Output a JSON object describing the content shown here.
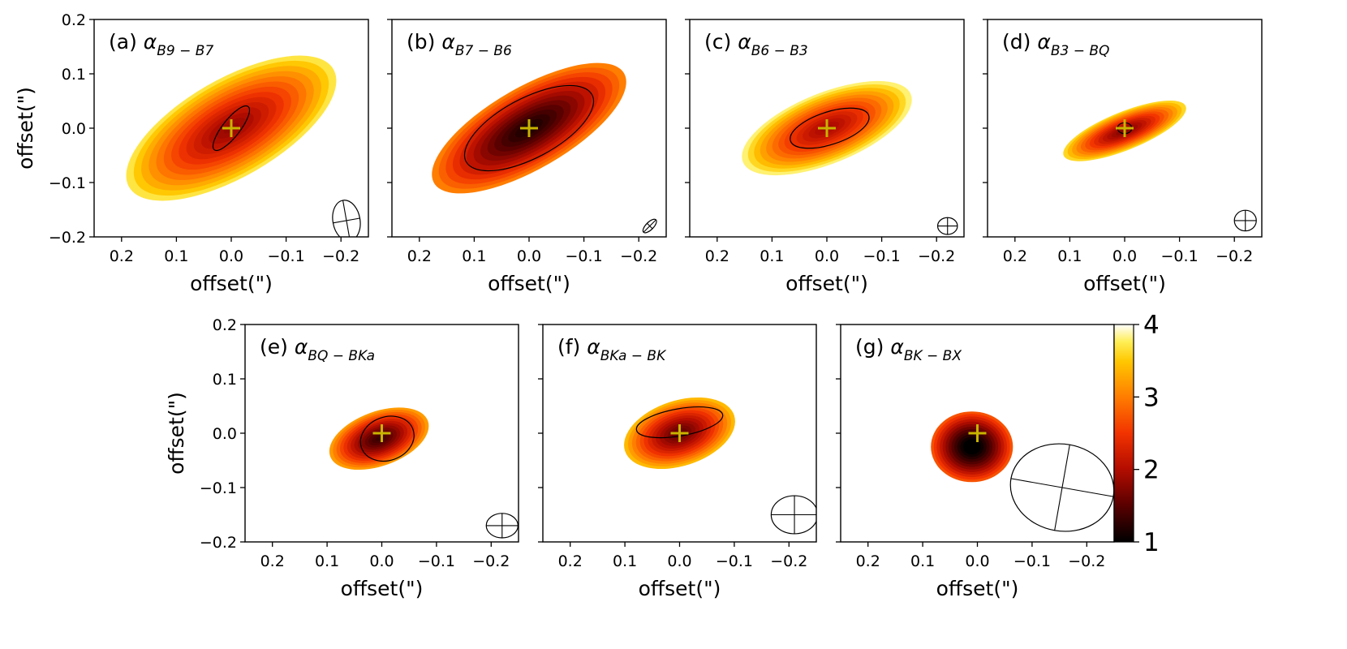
{
  "chart_data": [
    {
      "type": "heatmap",
      "panel": "a",
      "title_prefix": "(a) ",
      "alpha_symbol": "α",
      "subscript": "B9 − B7",
      "xlabel": "offset(\")",
      "ylabel": "offset(\")",
      "xlim": [
        0.25,
        -0.25
      ],
      "ylim": [
        -0.2,
        0.2
      ],
      "xticks": [
        "0.2",
        "0.1",
        "0.0",
        "−0.1",
        "−0.2"
      ],
      "yticks": [
        "0.2",
        "0.1",
        "0.0",
        "−0.1",
        "−0.2"
      ],
      "center_marker": [
        0,
        0
      ],
      "emission": {
        "center": [
          0.0,
          0.0
        ],
        "semi_major": 0.215,
        "semi_minor": 0.09,
        "pa_deg": 30,
        "mean_alpha": 2.5
      },
      "contour": {
        "center": [
          0.0,
          0.0
        ],
        "semi_major": 0.05,
        "semi_minor": 0.016,
        "pa_deg": 52
      },
      "beam": {
        "center": [
          -0.21,
          -0.17
        ],
        "major": 0.075,
        "minor": 0.05,
        "pa_deg": 100
      }
    },
    {
      "type": "heatmap",
      "panel": "b",
      "title_prefix": "(b) ",
      "alpha_symbol": "α",
      "subscript": "B7 − B6",
      "xlabel": "offset(\")",
      "ylabel": "",
      "xlim": [
        0.25,
        -0.25
      ],
      "ylim": [
        -0.2,
        0.2
      ],
      "xticks": [
        "0.2",
        "0.1",
        "0.0",
        "−0.1",
        "−0.2"
      ],
      "yticks": [],
      "center_marker": [
        0,
        0
      ],
      "emission": {
        "center": [
          0.0,
          0.0
        ],
        "semi_major": 0.2,
        "semi_minor": 0.075,
        "pa_deg": 30,
        "mean_alpha": 1.8
      },
      "contour": {
        "center": [
          0.0,
          0.0
        ],
        "semi_major": 0.13,
        "semi_minor": 0.055,
        "pa_deg": 28
      },
      "beam": {
        "center": [
          -0.22,
          -0.18
        ],
        "major": 0.032,
        "minor": 0.014,
        "pa_deg": 45
      }
    },
    {
      "type": "heatmap",
      "panel": "c",
      "title_prefix": "(c) ",
      "alpha_symbol": "α",
      "subscript": "B6 − B3",
      "xlabel": "offset(\")",
      "ylabel": "",
      "xlim": [
        0.25,
        -0.25
      ],
      "ylim": [
        -0.2,
        0.2
      ],
      "xticks": [
        "0.2",
        "0.1",
        "0.0",
        "−0.1",
        "−0.2"
      ],
      "yticks": [],
      "center_marker": [
        0,
        0
      ],
      "emission": {
        "center": [
          0.0,
          0.0
        ],
        "semi_major": 0.165,
        "semi_minor": 0.065,
        "pa_deg": 22,
        "mean_alpha": 2.6
      },
      "contour": {
        "center": [
          -0.005,
          0.0
        ],
        "semi_major": 0.075,
        "semi_minor": 0.03,
        "pa_deg": 18
      },
      "beam": {
        "center": [
          -0.22,
          -0.18
        ],
        "major": 0.036,
        "minor": 0.031,
        "pa_deg": 0
      }
    },
    {
      "type": "heatmap",
      "panel": "d",
      "title_prefix": "(d) ",
      "alpha_symbol": "α",
      "subscript": "B3 − BQ",
      "xlabel": "offset(\")",
      "ylabel": "",
      "xlim": [
        0.25,
        -0.25
      ],
      "ylim": [
        -0.2,
        0.2
      ],
      "xticks": [
        "0.2",
        "0.1",
        "0.0",
        "−0.1",
        "−0.2"
      ],
      "yticks": [],
      "center_marker": [
        0,
        0
      ],
      "emission": {
        "center": [
          0.0,
          -0.005
        ],
        "semi_major": 0.12,
        "semi_minor": 0.035,
        "pa_deg": 22,
        "mean_alpha": 2.4
      },
      "contour": {
        "center": [
          0.0,
          0.0
        ],
        "semi_major": 0.013,
        "semi_minor": 0.01,
        "pa_deg": 0
      },
      "beam": {
        "center": [
          -0.22,
          -0.17
        ],
        "major": 0.04,
        "minor": 0.038,
        "pa_deg": 0
      }
    },
    {
      "type": "heatmap",
      "panel": "e",
      "title_prefix": "(e) ",
      "alpha_symbol": "α",
      "subscript": "BQ − BKa",
      "xlabel": "offset(\")",
      "ylabel": "offset(\")",
      "xlim": [
        0.25,
        -0.25
      ],
      "ylim": [
        -0.2,
        0.2
      ],
      "xticks": [
        "0.2",
        "0.1",
        "0.0",
        "−0.1",
        "−0.2"
      ],
      "yticks": [
        "0.2",
        "0.1",
        "0.0",
        "−0.1",
        "−0.2"
      ],
      "center_marker": [
        0,
        0
      ],
      "emission": {
        "center": [
          0.005,
          -0.01
        ],
        "semi_major": 0.095,
        "semi_minor": 0.05,
        "pa_deg": 20,
        "mean_alpha": 2.0
      },
      "contour": {
        "center": [
          -0.01,
          -0.01
        ],
        "semi_major": 0.05,
        "semi_minor": 0.04,
        "pa_deg": 20
      },
      "beam": {
        "center": [
          -0.22,
          -0.17
        ],
        "major": 0.058,
        "minor": 0.045,
        "pa_deg": 0
      }
    },
    {
      "type": "heatmap",
      "panel": "f",
      "title_prefix": "(f) ",
      "alpha_symbol": "α",
      "subscript": "BKa − BK",
      "xlabel": "offset(\")",
      "ylabel": "",
      "xlim": [
        0.25,
        -0.25
      ],
      "ylim": [
        -0.2,
        0.2
      ],
      "xticks": [
        "0.2",
        "0.1",
        "0.0",
        "−0.1",
        "−0.2"
      ],
      "yticks": [],
      "center_marker": [
        0,
        0
      ],
      "emission": {
        "center": [
          0.0,
          0.0
        ],
        "semi_major": 0.105,
        "semi_minor": 0.06,
        "pa_deg": 18,
        "mean_alpha": 2.2
      },
      "contour": {
        "center": [
          0.0,
          0.02
        ],
        "semi_major": 0.08,
        "semi_minor": 0.025,
        "pa_deg": 10
      },
      "beam": {
        "center": [
          -0.21,
          -0.15
        ],
        "major": 0.085,
        "minor": 0.07,
        "pa_deg": 0
      }
    },
    {
      "type": "heatmap",
      "panel": "g",
      "title_prefix": "(g) ",
      "alpha_symbol": "α",
      "subscript": "BK − BX",
      "xlabel": "offset(\")",
      "ylabel": "",
      "xlim": [
        0.25,
        -0.25
      ],
      "ylim": [
        -0.2,
        0.2
      ],
      "xticks": [
        "0.2",
        "0.1",
        "0.0",
        "−0.1",
        "−0.2"
      ],
      "yticks": [],
      "center_marker": [
        0,
        0
      ],
      "emission": {
        "center": [
          0.01,
          -0.025
        ],
        "semi_major": 0.075,
        "semi_minor": 0.065,
        "pa_deg": 0,
        "mean_alpha": 1.5
      },
      "contour": null,
      "beam": {
        "center": [
          -0.155,
          -0.1
        ],
        "major": 0.19,
        "minor": 0.16,
        "pa_deg": -10
      }
    }
  ],
  "colorbar": {
    "colormap": "afmhot",
    "vmin": 1,
    "vmax": 4,
    "ticks": [
      "1",
      "2",
      "3",
      "4"
    ]
  },
  "marker_color": "#c8b400",
  "contour_color": "#000000"
}
